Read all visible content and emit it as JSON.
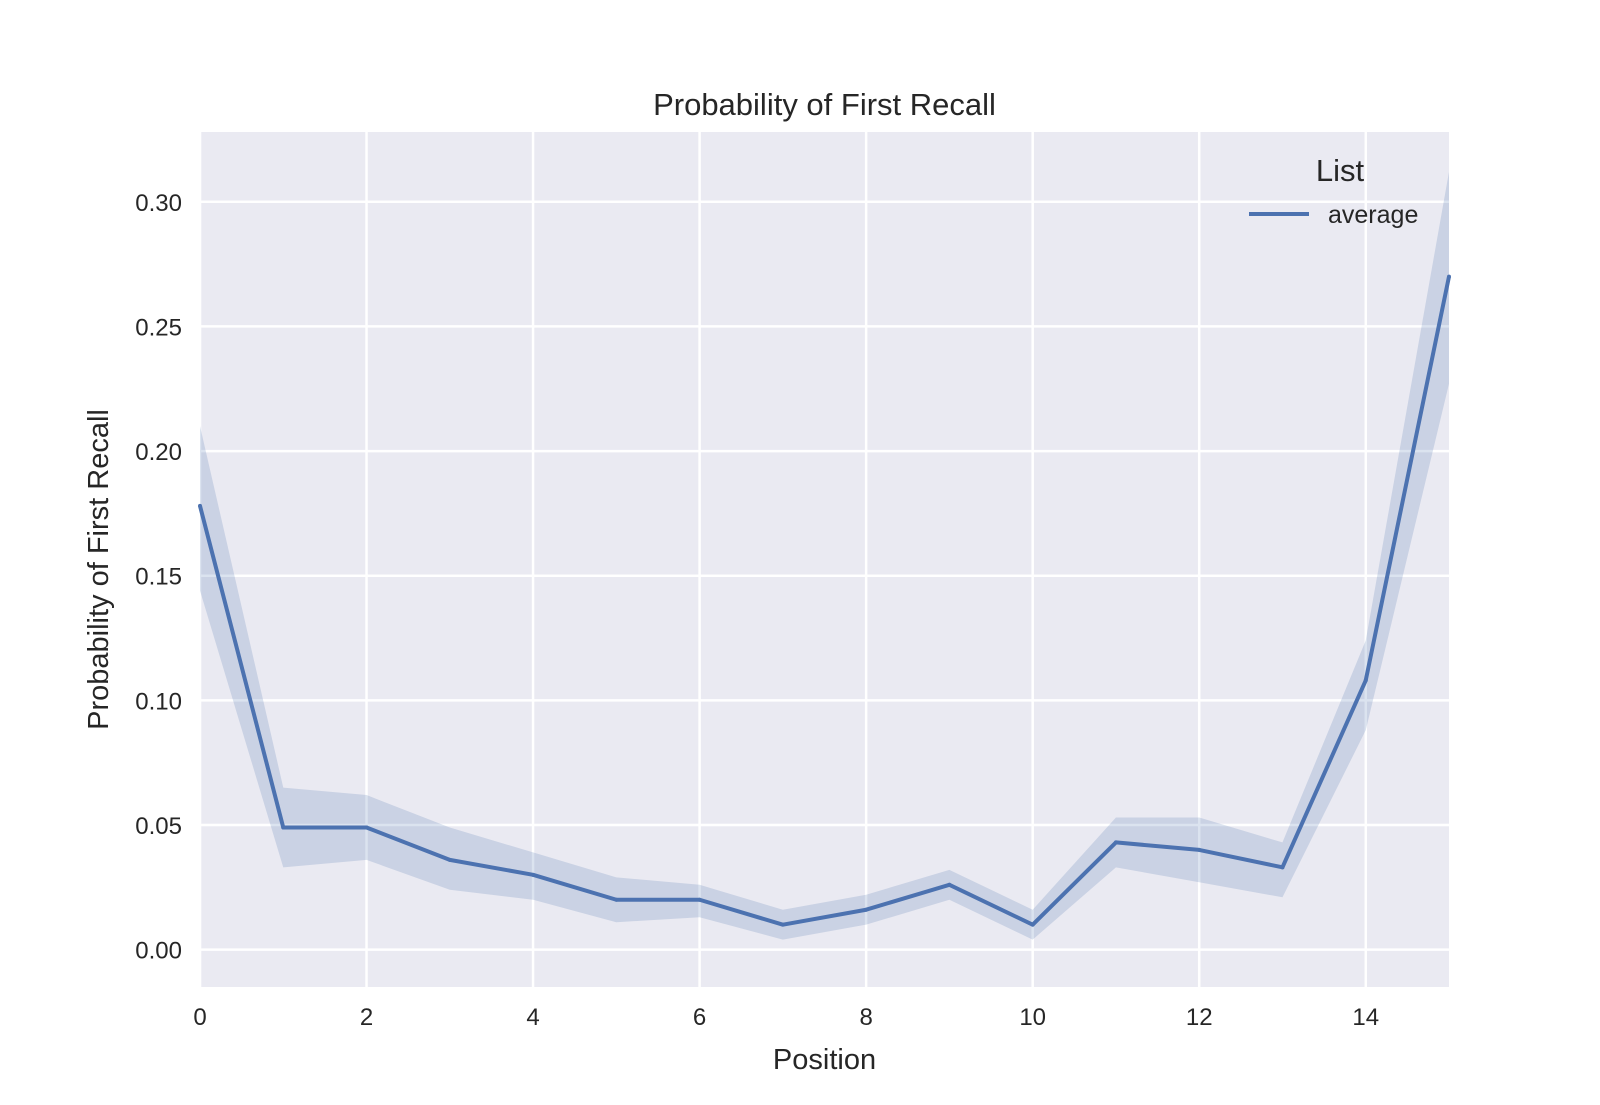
{
  "chart_data": {
    "type": "line",
    "title": "Probability of First Recall",
    "xlabel": "Position",
    "ylabel": "Probability of First Recall",
    "xlim": [
      0,
      15
    ],
    "ylim": [
      -0.015,
      0.328
    ],
    "xticks": [
      0,
      2,
      4,
      6,
      8,
      10,
      12,
      14
    ],
    "xtick_labels": [
      "0",
      "2",
      "4",
      "6",
      "8",
      "10",
      "12",
      "14"
    ],
    "yticks": [
      0.0,
      0.05,
      0.1,
      0.15,
      0.2,
      0.25,
      0.3
    ],
    "ytick_labels": [
      "0.00",
      "0.05",
      "0.10",
      "0.15",
      "0.20",
      "0.25",
      "0.30"
    ],
    "grid": true,
    "legend": {
      "title": "List",
      "placement": "top-right",
      "entries": [
        "average"
      ]
    },
    "colors": {
      "background": "#eaeaf2",
      "grid": "#ffffff",
      "line": "#4c72b0",
      "band": "#4c72b0"
    },
    "x": [
      0,
      1,
      2,
      3,
      4,
      5,
      6,
      7,
      8,
      9,
      10,
      11,
      12,
      13,
      14,
      15
    ],
    "series": [
      {
        "name": "average",
        "values": [
          0.178,
          0.049,
          0.049,
          0.036,
          0.03,
          0.02,
          0.02,
          0.01,
          0.016,
          0.026,
          0.01,
          0.043,
          0.04,
          0.033,
          0.108,
          0.27
        ],
        "lower": [
          0.144,
          0.033,
          0.036,
          0.024,
          0.02,
          0.011,
          0.013,
          0.004,
          0.01,
          0.02,
          0.004,
          0.033,
          0.027,
          0.021,
          0.088,
          0.227
        ],
        "upper": [
          0.21,
          0.065,
          0.062,
          0.049,
          0.039,
          0.029,
          0.026,
          0.016,
          0.022,
          0.032,
          0.016,
          0.053,
          0.053,
          0.043,
          0.124,
          0.312
        ]
      }
    ]
  }
}
